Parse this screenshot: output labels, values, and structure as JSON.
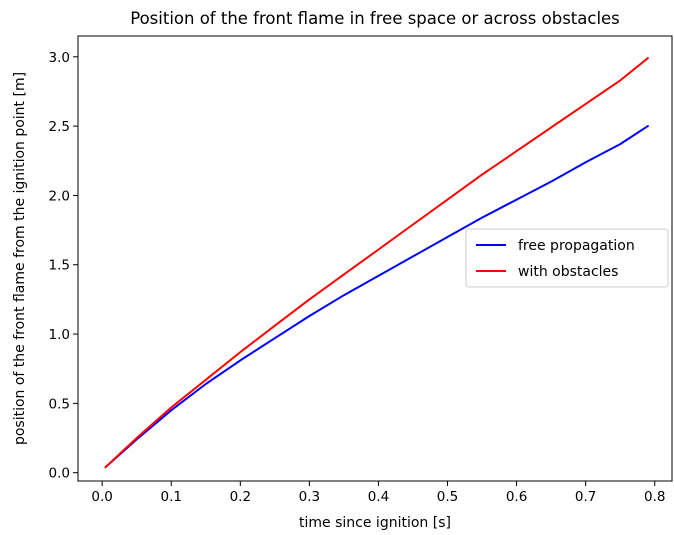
{
  "chart_data": {
    "type": "line",
    "title": "Position of the front flame in free space or across obstacles",
    "xlabel": "time since ignition [s]",
    "ylabel": "position of the front flame from the ignition point [m]",
    "xlim": [
      -0.035,
      0.825
    ],
    "ylim": [
      -0.06,
      3.15
    ],
    "xticks": [
      0.0,
      0.1,
      0.2,
      0.3,
      0.4,
      0.5,
      0.6,
      0.7,
      0.8
    ],
    "xtick_labels": [
      "0.0",
      "0.1",
      "0.2",
      "0.3",
      "0.4",
      "0.5",
      "0.6",
      "0.7",
      "0.8"
    ],
    "yticks": [
      0.0,
      0.5,
      1.0,
      1.5,
      2.0,
      2.5,
      3.0
    ],
    "ytick_labels": [
      "0.0",
      "0.5",
      "1.0",
      "1.5",
      "2.0",
      "2.5",
      "3.0"
    ],
    "grid": false,
    "legend_position": "center-right",
    "series": [
      {
        "name": "free propagation",
        "color": "#0000ff",
        "x": [
          0.005,
          0.05,
          0.1,
          0.15,
          0.2,
          0.25,
          0.3,
          0.35,
          0.4,
          0.45,
          0.5,
          0.55,
          0.6,
          0.65,
          0.7,
          0.75,
          0.79
        ],
        "y": [
          0.04,
          0.24,
          0.45,
          0.64,
          0.81,
          0.97,
          1.13,
          1.28,
          1.42,
          1.56,
          1.7,
          1.84,
          1.97,
          2.1,
          2.24,
          2.37,
          2.5
        ]
      },
      {
        "name": "with obstacles",
        "color": "#ff0000",
        "x": [
          0.005,
          0.05,
          0.1,
          0.15,
          0.2,
          0.25,
          0.3,
          0.35,
          0.4,
          0.45,
          0.5,
          0.55,
          0.6,
          0.65,
          0.7,
          0.75,
          0.79
        ],
        "y": [
          0.04,
          0.25,
          0.47,
          0.67,
          0.87,
          1.06,
          1.25,
          1.43,
          1.61,
          1.79,
          1.97,
          2.15,
          2.32,
          2.49,
          2.66,
          2.83,
          2.99
        ]
      }
    ]
  }
}
